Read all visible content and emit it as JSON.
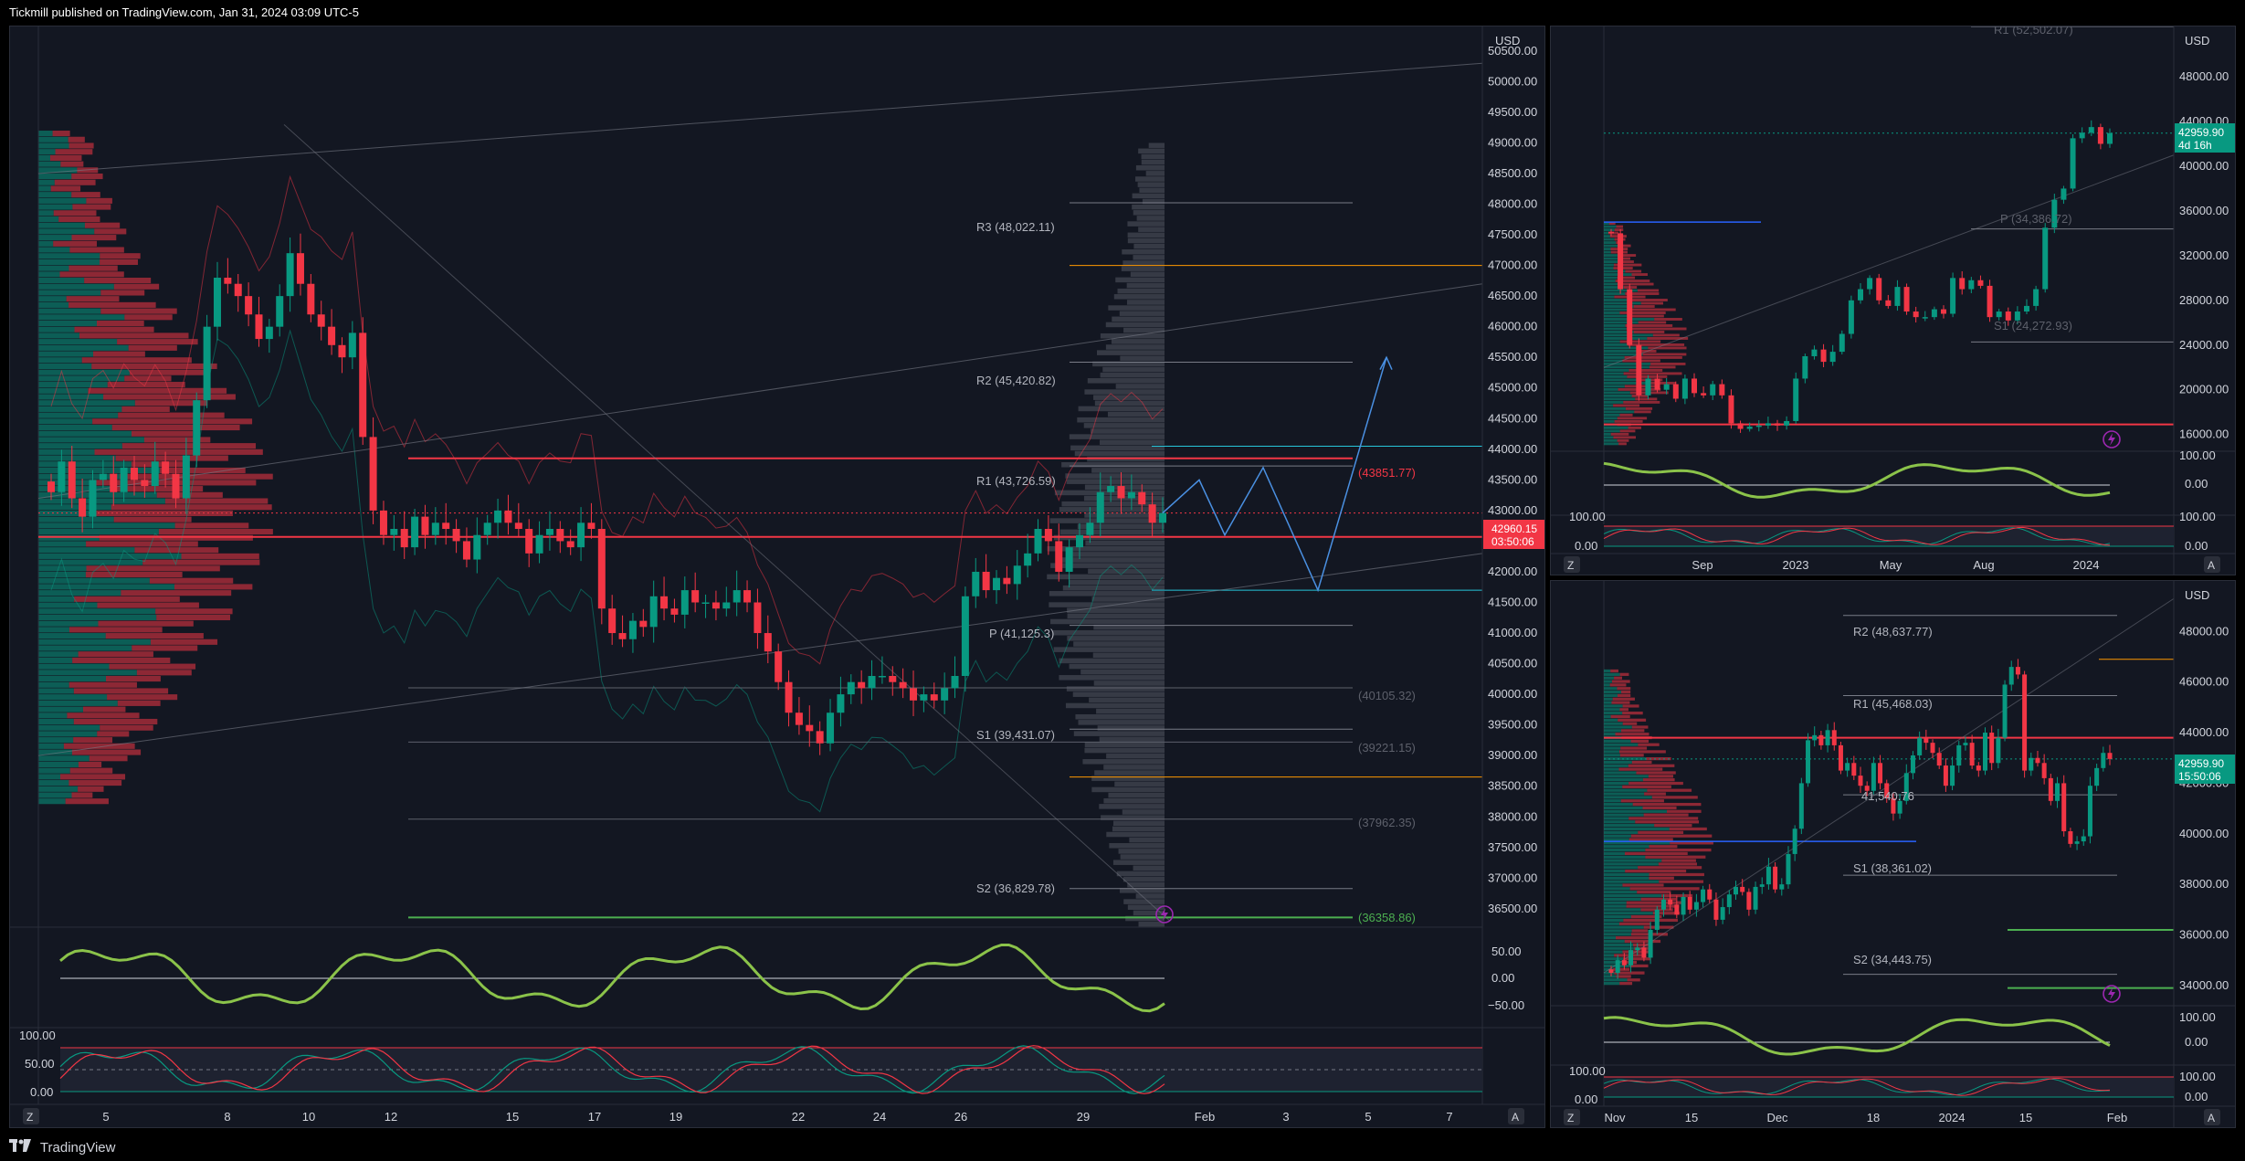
{
  "header": {
    "publisher_line": "Tickmill published on TradingView.com, Jan 31, 2024 03:09 UTC-5"
  },
  "footer": {
    "brand": "TradingView"
  },
  "colors": {
    "up": "#089981",
    "down": "#f23645",
    "bg": "#131722",
    "blue": "#2962ff",
    "purple": "#9c27b0"
  },
  "main_chart": {
    "currency": "USD",
    "price_badge": "42960.15",
    "timer_badge": "03:50:06",
    "pivot_labels": {
      "r3": "R3 (48,022.11)",
      "r2": "R2 (45,420.82)",
      "r1": "R1 (43,726.59)",
      "p": "P (41,125.3)",
      "s1": "S1 (39,431.07)",
      "s2": "S2 (36,829.78)"
    },
    "level_labels": {
      "l43851": "(43851.77)",
      "l40105": "(40105.32)",
      "l39221": "(39221.15)",
      "l37962": "(37962.35)",
      "l36358": "(36358.86)"
    },
    "osc1_labels": [
      "50.00",
      "0.00",
      "−50.00"
    ],
    "osc2_labels": [
      "100.00",
      "50.00",
      "0.00"
    ],
    "xaxis_left_label": "Z",
    "xaxis_right_label": "A"
  },
  "right_top_chart": {
    "currency": "USD",
    "price_badge": "42959.90",
    "timer_badge": "4d 16h",
    "pivot_labels": {
      "r1": "R1 (52,502.07)",
      "p": "P (34,386.72)",
      "s1": "S1 (24,272.93)"
    },
    "osc1_labels": [
      "100.00",
      "0.00"
    ],
    "osc2_labels": [
      "100.00",
      "0.00"
    ],
    "xaxis_left_label": "Z",
    "xaxis_right_label": "A"
  },
  "right_bottom_chart": {
    "currency": "USD",
    "price_badge": "42959.90",
    "timer_badge": "15:50:06",
    "pivot_labels": {
      "r2": "R2 (48,637.77)",
      "r1": "R1 (45,468.03)",
      "p": "41,540.76",
      "s1": "S1 (38,361.02)",
      "s2": "S2 (34,443.75)"
    },
    "osc1_labels": [
      "100.00",
      "0.00"
    ],
    "osc2_labels": [
      "100.00",
      "0.00"
    ],
    "xaxis_left_label": "Z",
    "xaxis_right_label": "A"
  },
  "chart_data": [
    {
      "type": "candlestick",
      "title": "",
      "currency": "USD",
      "y_ticks": [
        "36500.00",
        "37000.00",
        "37500.00",
        "38000.00",
        "38500.00",
        "39000.00",
        "39500.00",
        "40000.00",
        "40500.00",
        "41000.00",
        "41500.00",
        "42000.00",
        "42500.00",
        "43000.00",
        "43500.00",
        "44000.00",
        "44500.00",
        "45000.00",
        "45500.00",
        "46000.00",
        "46500.00",
        "47000.00",
        "47500.00",
        "48000.00",
        "48500.00",
        "49000.00",
        "49500.00",
        "50000.00",
        "50500.00"
      ],
      "ylim": [
        36200,
        50900
      ],
      "x_ticks": [
        "5",
        "8",
        "10",
        "12",
        "15",
        "17",
        "19",
        "22",
        "24",
        "26",
        "29",
        "Feb",
        "3",
        "5",
        "7"
      ],
      "last_price": 42960.15,
      "pivots": {
        "R3": 48022.11,
        "R2": 45420.82,
        "R1": 43726.59,
        "P": 41125.3,
        "S1": 39431.07,
        "S2": 36829.78
      },
      "levels": [
        43851.77,
        40105.32,
        39221.15,
        37962.35,
        36358.86
      ],
      "closes": [
        43300,
        43800,
        43200,
        42900,
        43500,
        43600,
        43300,
        43700,
        43500,
        43400,
        43800,
        43600,
        43200,
        43900,
        44800,
        46000,
        46800,
        46700,
        46500,
        46200,
        45800,
        46000,
        46500,
        47200,
        46700,
        46200,
        46000,
        45700,
        45500,
        45900,
        44200,
        43000,
        42600,
        42700,
        42400,
        42900,
        42600,
        42800,
        42700,
        42500,
        42200,
        42600,
        42800,
        43000,
        42800,
        42700,
        42300,
        42600,
        42700,
        42500,
        42400,
        42800,
        42700,
        41400,
        41000,
        40900,
        41200,
        41100,
        41600,
        41400,
        41300,
        41700,
        41500,
        41500,
        41400,
        41500,
        41700,
        41500,
        41000,
        40700,
        40200,
        39700,
        39500,
        39400,
        39200,
        39700,
        40000,
        40200,
        40100,
        40300,
        40300,
        40200,
        40100,
        39900,
        40000,
        39900,
        40100,
        40300,
        41600,
        42000,
        41700,
        41900,
        41800,
        42100,
        42300,
        42700,
        42500,
        42000,
        42400,
        42600,
        42800,
        43300,
        43400,
        43200,
        43300,
        43100,
        42800,
        42960
      ],
      "projection": [
        [
          0,
          42960
        ],
        [
          1,
          43500
        ],
        [
          2,
          42600
        ],
        [
          3,
          43700
        ],
        [
          4,
          41700
        ],
        [
          5,
          45500
        ]
      ],
      "series": [
        {
          "name": "Oscillator",
          "range": [
            -50,
            50
          ]
        },
        {
          "name": "Stochastic",
          "range": [
            0,
            100
          ]
        }
      ]
    },
    {
      "type": "candlestick",
      "title": "",
      "currency": "USD",
      "y_ticks": [
        "16000.00",
        "20000.00",
        "24000.00",
        "28000.00",
        "32000.00",
        "36000.00",
        "40000.00",
        "44000.00",
        "48000.00"
      ],
      "ylim": [
        14500,
        52500
      ],
      "x_ticks": [
        "Sep",
        "2023",
        "May",
        "Aug",
        "2024"
      ],
      "last_price": 42959.9,
      "pivots": {
        "R1": 52502.07,
        "P": 34386.72,
        "S1": 24272.93
      },
      "closes": [
        34000,
        29000,
        24000,
        19500,
        21000,
        20000,
        20500,
        19200,
        21000,
        19700,
        19500,
        20500,
        19500,
        17000,
        16500,
        16700,
        16800,
        17000,
        16800,
        17200,
        21000,
        23000,
        23600,
        22500,
        23400,
        25000,
        28000,
        29000,
        30000,
        28000,
        27500,
        29200,
        27000,
        26500,
        26500,
        27200,
        26800,
        30000,
        29000,
        29800,
        29300,
        26500,
        27000,
        26200,
        27000,
        27500,
        29000,
        34500,
        37000,
        38000,
        42500,
        43000,
        43500,
        42000,
        42960
      ],
      "series": [
        {
          "name": "Oscillator",
          "range": [
            0,
            100
          ]
        },
        {
          "name": "Stochastic",
          "range": [
            0,
            100
          ]
        }
      ]
    },
    {
      "type": "candlestick",
      "title": "",
      "currency": "USD",
      "y_ticks": [
        "34000.00",
        "36000.00",
        "38000.00",
        "40000.00",
        "42000.00",
        "44000.00",
        "46000.00",
        "48000.00"
      ],
      "ylim": [
        33200,
        50000
      ],
      "x_ticks": [
        "Nov",
        "15",
        "Dec",
        "18",
        "2024",
        "15",
        "Feb"
      ],
      "last_price": 42959.9,
      "pivots": {
        "R2": 48637.77,
        "R1": 45468.03,
        "P": 41540.76,
        "S1": 38361.02,
        "S2": 34443.75
      },
      "closes": [
        34500,
        35000,
        34800,
        35400,
        35500,
        35100,
        36200,
        37000,
        37400,
        37200,
        36800,
        37500,
        37000,
        37300,
        37800,
        37400,
        36600,
        37100,
        37600,
        37900,
        37700,
        37000,
        37900,
        38000,
        38700,
        37800,
        38000,
        39200,
        40200,
        42000,
        43700,
        43900,
        43500,
        44100,
        43500,
        42500,
        42800,
        42300,
        41900,
        41700,
        42800,
        42000,
        41400,
        40800,
        41300,
        42400,
        43100,
        43800,
        43600,
        43200,
        42700,
        41900,
        42700,
        43500,
        43600,
        42700,
        42500,
        44000,
        42800,
        43800,
        45900,
        46600,
        46300,
        42500,
        43000,
        42800,
        42200,
        41300,
        42000,
        40100,
        39600,
        39700,
        39900,
        41900,
        42600,
        43200,
        42960
      ],
      "series": [
        {
          "name": "Oscillator",
          "range": [
            0,
            100
          ]
        },
        {
          "name": "Stochastic",
          "range": [
            0,
            100
          ]
        }
      ]
    }
  ]
}
